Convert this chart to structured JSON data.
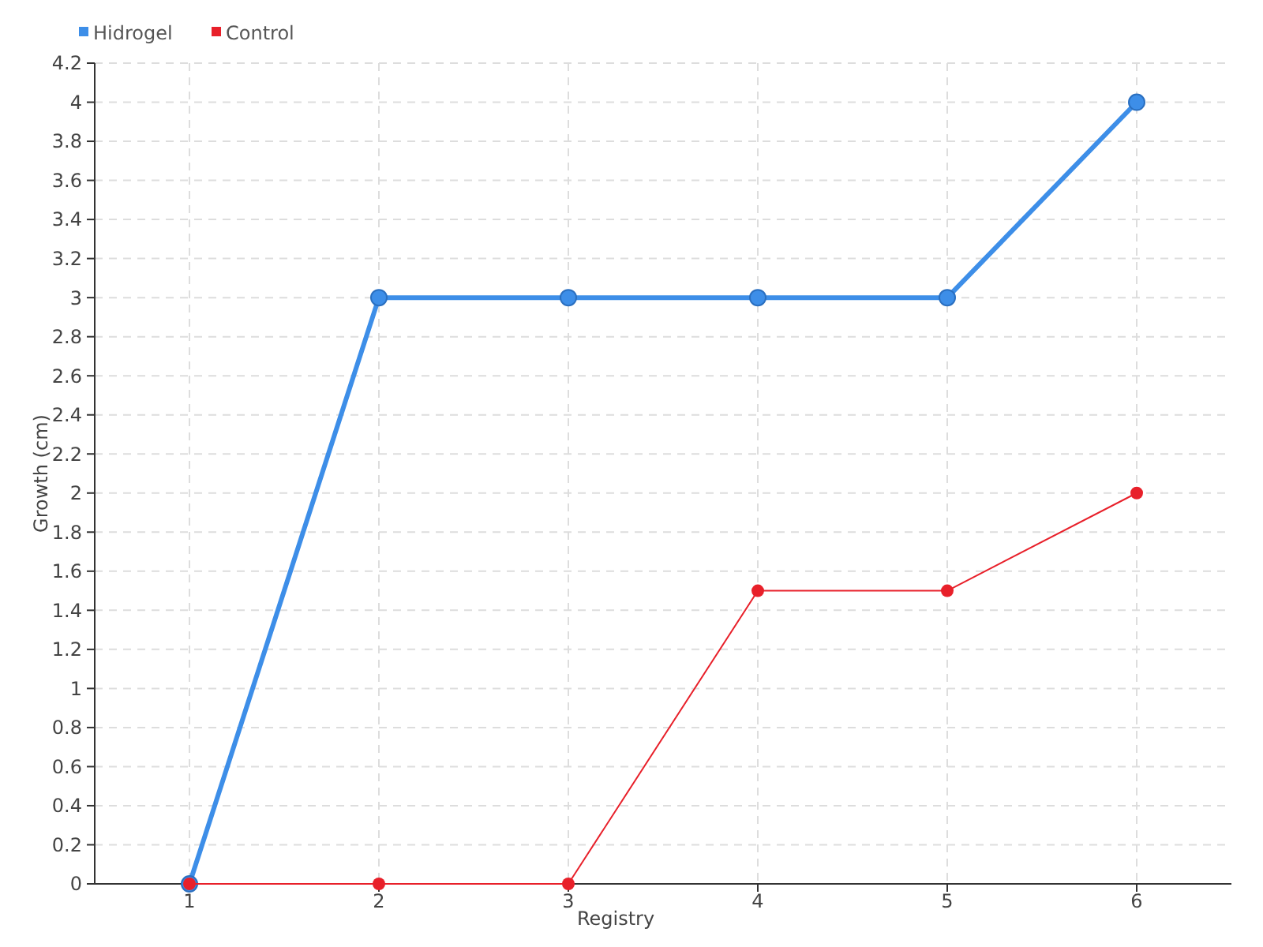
{
  "chart_data": {
    "type": "line",
    "xlabel": "Registry",
    "ylabel": "Growth (cm)",
    "x": [
      1,
      2,
      3,
      4,
      5,
      6
    ],
    "xlim": [
      0.5,
      6.5
    ],
    "xticks": [
      1,
      2,
      3,
      4,
      5,
      6
    ],
    "ylim": [
      0,
      4.2
    ],
    "yticks": [
      0,
      0.2,
      0.4,
      0.6,
      0.8,
      1,
      1.2,
      1.4,
      1.6,
      1.8,
      2,
      2.2,
      2.4,
      2.6,
      2.8,
      3,
      3.2,
      3.4,
      3.6,
      3.8,
      4,
      4.2
    ],
    "grid": true,
    "legend": "top left",
    "marker": "circle",
    "line_style": "solid",
    "series": [
      {
        "name": "Hidrogel",
        "color": "#3d8ee8",
        "values": [
          0,
          3,
          3,
          3,
          3,
          4
        ]
      },
      {
        "name": "Control",
        "color": "#e8202a",
        "values": [
          0,
          0,
          0,
          1.5,
          1.5,
          2
        ]
      }
    ]
  }
}
